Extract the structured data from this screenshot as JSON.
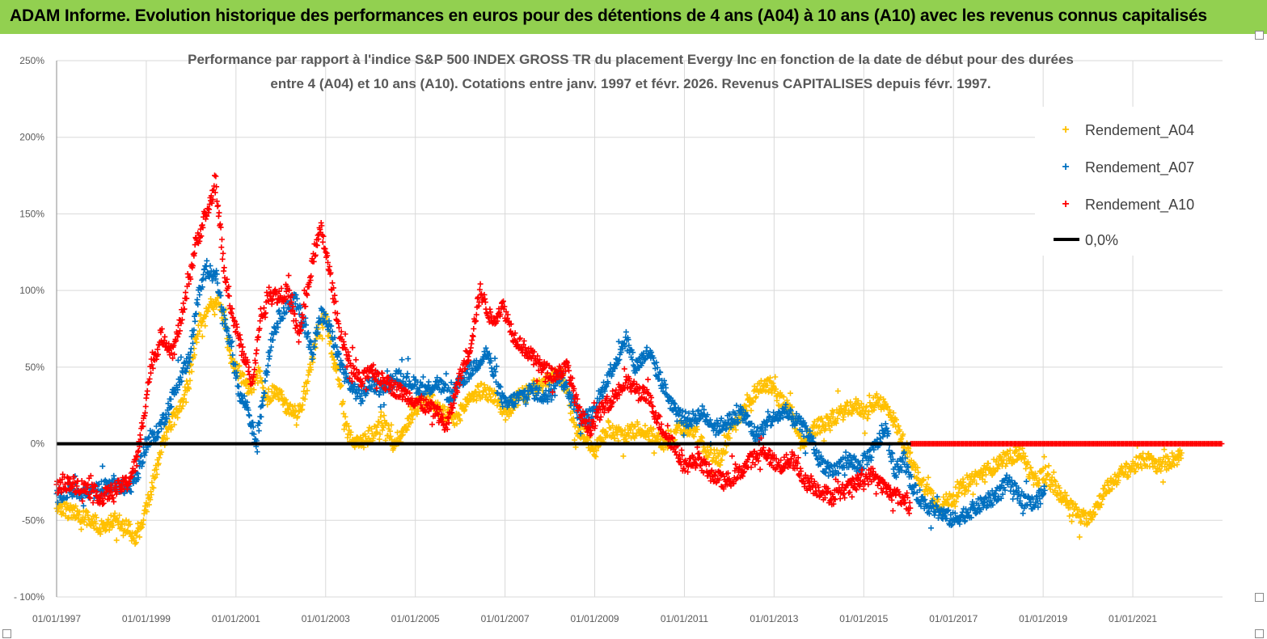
{
  "header": {
    "title": "ADAM Informe. Evolution historique des performances en euros pour des détentions de 4 ans (A04) à 10 ans (A10) avec les revenus connus capitalisés"
  },
  "chart_data": {
    "type": "scatter",
    "title_line1": "Performance par rapport à l'indice S&P 500 INDEX GROSS TR  du placement Evergy Inc en fonction de la date de début pour des durées",
    "title_line2": "entre 4 (A04) et 10 ans (A10). Cotations entre janv. 1997 et févr. 2026. Revenus CAPITALISES depuis févr. 1997.",
    "xlabel": "",
    "ylabel": "",
    "x_range": [
      1997.0,
      2023.0
    ],
    "ylim": [
      -100,
      250
    ],
    "y_ticks": [
      250,
      200,
      150,
      100,
      50,
      0,
      -50,
      -100
    ],
    "y_tick_labels": [
      "250%",
      "200%",
      "150%",
      "100%",
      "50%",
      "0%",
      "-50%",
      "- 100%"
    ],
    "x_ticks": [
      1997,
      1999,
      2001,
      2003,
      2005,
      2007,
      2009,
      2011,
      2013,
      2015,
      2017,
      2019,
      2021
    ],
    "x_tick_labels": [
      "01/01/1997",
      "01/01/1999",
      "01/01/2001",
      "01/01/2003",
      "01/01/2005",
      "01/01/2007",
      "01/01/2009",
      "01/01/2011",
      "01/01/2013",
      "01/01/2015",
      "01/01/2017",
      "01/01/2019",
      "01/01/2021"
    ],
    "grid": true,
    "legend_position": "top-right",
    "series": [
      {
        "name": "Rendement_A04",
        "color": "#ffc000",
        "marker": "plus",
        "x_end": 2022.1,
        "points": [
          [
            1997.0,
            -42
          ],
          [
            1997.4,
            -45
          ],
          [
            1997.8,
            -50
          ],
          [
            1998.0,
            -55
          ],
          [
            1998.3,
            -50
          ],
          [
            1998.6,
            -55
          ],
          [
            1998.75,
            -62
          ],
          [
            1999.0,
            -42
          ],
          [
            1999.2,
            -20
          ],
          [
            1999.4,
            5
          ],
          [
            1999.7,
            20
          ],
          [
            1999.95,
            40
          ],
          [
            2000.15,
            75
          ],
          [
            2000.3,
            85
          ],
          [
            2000.6,
            95
          ],
          [
            2000.75,
            80
          ],
          [
            2000.9,
            55
          ],
          [
            2001.1,
            45
          ],
          [
            2001.3,
            35
          ],
          [
            2001.5,
            45
          ],
          [
            2001.7,
            30
          ],
          [
            2001.9,
            35
          ],
          [
            2002.1,
            25
          ],
          [
            2002.4,
            20
          ],
          [
            2002.6,
            40
          ],
          [
            2002.8,
            70
          ],
          [
            2003.0,
            85
          ],
          [
            2003.15,
            55
          ],
          [
            2003.3,
            45
          ],
          [
            2003.45,
            10
          ],
          [
            2003.7,
            0
          ],
          [
            2004.0,
            5
          ],
          [
            2004.3,
            15
          ],
          [
            2004.5,
            0
          ],
          [
            2004.8,
            10
          ],
          [
            2005.0,
            25
          ],
          [
            2005.3,
            30
          ],
          [
            2005.6,
            20
          ],
          [
            2005.9,
            15
          ],
          [
            2006.2,
            30
          ],
          [
            2006.5,
            35
          ],
          [
            2006.8,
            30
          ],
          [
            2007.0,
            20
          ],
          [
            2007.3,
            30
          ],
          [
            2007.6,
            35
          ],
          [
            2007.9,
            40
          ],
          [
            2008.2,
            45
          ],
          [
            2008.4,
            35
          ],
          [
            2008.55,
            10
          ],
          [
            2008.8,
            5
          ],
          [
            2009.0,
            -5
          ],
          [
            2009.3,
            10
          ],
          [
            2009.6,
            5
          ],
          [
            2010.0,
            10
          ],
          [
            2010.3,
            5
          ],
          [
            2010.6,
            0
          ],
          [
            2010.9,
            10
          ],
          [
            2011.2,
            10
          ],
          [
            2011.5,
            -5
          ],
          [
            2011.8,
            -10
          ],
          [
            2012.0,
            5
          ],
          [
            2012.3,
            20
          ],
          [
            2012.6,
            35
          ],
          [
            2012.9,
            40
          ],
          [
            2013.1,
            30
          ],
          [
            2013.4,
            20
          ],
          [
            2013.6,
            0
          ],
          [
            2013.9,
            10
          ],
          [
            2014.2,
            15
          ],
          [
            2014.5,
            20
          ],
          [
            2014.8,
            25
          ],
          [
            2015.1,
            20
          ],
          [
            2015.3,
            30
          ],
          [
            2015.6,
            20
          ],
          [
            2015.9,
            0
          ],
          [
            2016.1,
            -15
          ],
          [
            2016.4,
            -30
          ],
          [
            2016.7,
            -40
          ],
          [
            2017.0,
            -35
          ],
          [
            2017.3,
            -25
          ],
          [
            2017.6,
            -20
          ],
          [
            2017.9,
            -15
          ],
          [
            2018.2,
            -10
          ],
          [
            2018.5,
            -5
          ],
          [
            2018.8,
            -25
          ],
          [
            2019.0,
            -20
          ],
          [
            2019.3,
            -30
          ],
          [
            2019.6,
            -40
          ],
          [
            2019.9,
            -50
          ],
          [
            2020.1,
            -45
          ],
          [
            2020.4,
            -30
          ],
          [
            2020.7,
            -20
          ],
          [
            2021.0,
            -15
          ],
          [
            2021.3,
            -10
          ],
          [
            2021.6,
            -15
          ],
          [
            2021.9,
            -10
          ],
          [
            2022.1,
            -8
          ]
        ]
      },
      {
        "name": "Rendement_A07",
        "color": "#0070c0",
        "marker": "plus",
        "x_end": 2019.05,
        "points": [
          [
            1997.0,
            -35
          ],
          [
            1997.3,
            -30
          ],
          [
            1997.7,
            -32
          ],
          [
            1998.0,
            -30
          ],
          [
            1998.3,
            -25
          ],
          [
            1998.6,
            -30
          ],
          [
            1998.8,
            -20
          ],
          [
            1999.0,
            0
          ],
          [
            1999.2,
            5
          ],
          [
            1999.45,
            20
          ],
          [
            1999.7,
            40
          ],
          [
            1999.95,
            55
          ],
          [
            2000.15,
            95
          ],
          [
            2000.35,
            115
          ],
          [
            2000.55,
            110
          ],
          [
            2000.75,
            80
          ],
          [
            2000.9,
            60
          ],
          [
            2001.1,
            30
          ],
          [
            2001.25,
            25
          ],
          [
            2001.45,
            0
          ],
          [
            2001.6,
            30
          ],
          [
            2001.8,
            70
          ],
          [
            2002.0,
            85
          ],
          [
            2002.3,
            95
          ],
          [
            2002.5,
            80
          ],
          [
            2002.7,
            60
          ],
          [
            2002.9,
            85
          ],
          [
            2003.1,
            75
          ],
          [
            2003.3,
            55
          ],
          [
            2003.5,
            40
          ],
          [
            2003.8,
            30
          ],
          [
            2004.0,
            40
          ],
          [
            2004.3,
            35
          ],
          [
            2004.6,
            45
          ],
          [
            2004.9,
            40
          ],
          [
            2005.2,
            35
          ],
          [
            2005.5,
            40
          ],
          [
            2005.8,
            30
          ],
          [
            2006.0,
            40
          ],
          [
            2006.3,
            50
          ],
          [
            2006.6,
            60
          ],
          [
            2006.8,
            40
          ],
          [
            2007.0,
            25
          ],
          [
            2007.3,
            30
          ],
          [
            2007.6,
            35
          ],
          [
            2007.9,
            30
          ],
          [
            2008.2,
            45
          ],
          [
            2008.5,
            30
          ],
          [
            2008.7,
            15
          ],
          [
            2009.0,
            20
          ],
          [
            2009.3,
            45
          ],
          [
            2009.5,
            55
          ],
          [
            2009.7,
            70
          ],
          [
            2009.9,
            50
          ],
          [
            2010.2,
            60
          ],
          [
            2010.5,
            40
          ],
          [
            2010.8,
            20
          ],
          [
            2011.1,
            15
          ],
          [
            2011.4,
            20
          ],
          [
            2011.7,
            10
          ],
          [
            2012.0,
            15
          ],
          [
            2012.3,
            20
          ],
          [
            2012.6,
            5
          ],
          [
            2012.9,
            15
          ],
          [
            2013.2,
            20
          ],
          [
            2013.5,
            15
          ],
          [
            2013.8,
            5
          ],
          [
            2014.0,
            -10
          ],
          [
            2014.3,
            -20
          ],
          [
            2014.6,
            -10
          ],
          [
            2014.9,
            -15
          ],
          [
            2015.2,
            -5
          ],
          [
            2015.5,
            10
          ],
          [
            2015.7,
            -20
          ],
          [
            2015.9,
            -10
          ],
          [
            2016.1,
            -30
          ],
          [
            2016.4,
            -40
          ],
          [
            2016.7,
            -45
          ],
          [
            2017.0,
            -50
          ],
          [
            2017.3,
            -45
          ],
          [
            2017.6,
            -40
          ],
          [
            2017.9,
            -35
          ],
          [
            2018.2,
            -25
          ],
          [
            2018.5,
            -35
          ],
          [
            2018.8,
            -40
          ],
          [
            2019.05,
            -30
          ]
        ]
      },
      {
        "name": "Rendement_A10",
        "color": "#ff0000",
        "marker": "plus",
        "x_end": 2016.05,
        "points": [
          [
            1997.0,
            -28
          ],
          [
            1997.3,
            -25
          ],
          [
            1997.7,
            -30
          ],
          [
            1998.0,
            -35
          ],
          [
            1998.3,
            -30
          ],
          [
            1998.6,
            -25
          ],
          [
            1998.8,
            -10
          ],
          [
            1998.95,
            20
          ],
          [
            1999.1,
            50
          ],
          [
            1999.35,
            70
          ],
          [
            1999.6,
            60
          ],
          [
            1999.85,
            90
          ],
          [
            2000.1,
            130
          ],
          [
            2000.35,
            150
          ],
          [
            2000.55,
            170
          ],
          [
            2000.75,
            110
          ],
          [
            2000.95,
            80
          ],
          [
            2001.15,
            60
          ],
          [
            2001.35,
            40
          ],
          [
            2001.55,
            80
          ],
          [
            2001.75,
            100
          ],
          [
            2001.95,
            95
          ],
          [
            2002.15,
            100
          ],
          [
            2002.4,
            70
          ],
          [
            2002.6,
            100
          ],
          [
            2002.75,
            125
          ],
          [
            2002.9,
            140
          ],
          [
            2003.1,
            110
          ],
          [
            2003.3,
            75
          ],
          [
            2003.55,
            50
          ],
          [
            2003.8,
            40
          ],
          [
            2004.0,
            50
          ],
          [
            2004.3,
            40
          ],
          [
            2004.6,
            35
          ],
          [
            2004.9,
            30
          ],
          [
            2005.2,
            25
          ],
          [
            2005.5,
            20
          ],
          [
            2005.7,
            10
          ],
          [
            2005.95,
            40
          ],
          [
            2006.2,
            60
          ],
          [
            2006.45,
            100
          ],
          [
            2006.7,
            80
          ],
          [
            2006.95,
            90
          ],
          [
            2007.2,
            70
          ],
          [
            2007.5,
            60
          ],
          [
            2007.8,
            50
          ],
          [
            2008.1,
            45
          ],
          [
            2008.4,
            50
          ],
          [
            2008.65,
            20
          ],
          [
            2008.9,
            10
          ],
          [
            2009.1,
            20
          ],
          [
            2009.4,
            30
          ],
          [
            2009.7,
            40
          ],
          [
            2009.95,
            35
          ],
          [
            2010.2,
            30
          ],
          [
            2010.5,
            10
          ],
          [
            2010.75,
            0
          ],
          [
            2011.0,
            -15
          ],
          [
            2011.3,
            -10
          ],
          [
            2011.6,
            -20
          ],
          [
            2011.9,
            -25
          ],
          [
            2012.2,
            -20
          ],
          [
            2012.5,
            -10
          ],
          [
            2012.8,
            -5
          ],
          [
            2013.1,
            -15
          ],
          [
            2013.4,
            -10
          ],
          [
            2013.7,
            -25
          ],
          [
            2014.0,
            -30
          ],
          [
            2014.3,
            -35
          ],
          [
            2014.6,
            -30
          ],
          [
            2014.9,
            -25
          ],
          [
            2015.2,
            -20
          ],
          [
            2015.5,
            -30
          ],
          [
            2015.8,
            -35
          ],
          [
            2016.05,
            -40
          ]
        ]
      },
      {
        "name": "0,0%",
        "color": "#000000",
        "marker": "line",
        "value": 0
      }
    ]
  }
}
